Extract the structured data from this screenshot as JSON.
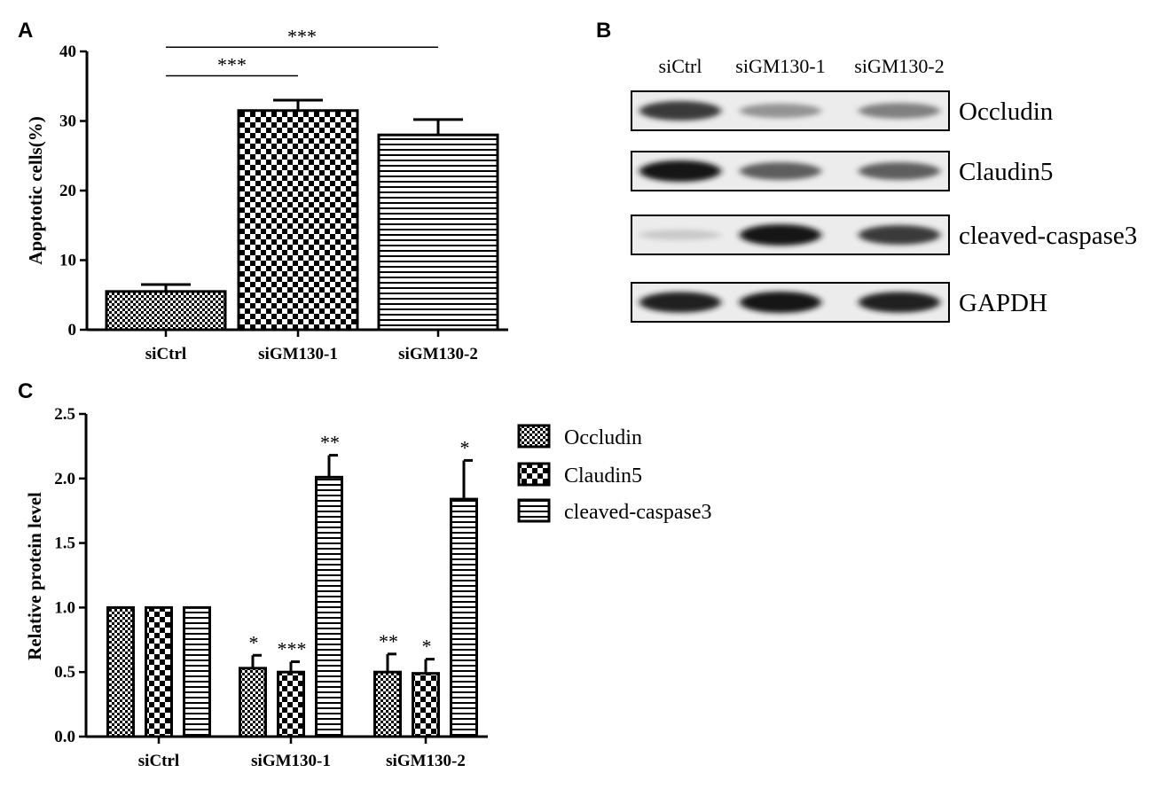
{
  "panels": {
    "a": "A",
    "b": "B",
    "c": "C"
  },
  "chart_data": [
    {
      "panel": "A",
      "type": "bar",
      "ylabel": "Apoptotic cells(%)",
      "ylim": [
        0,
        40
      ],
      "yticks": [
        0,
        10,
        20,
        30,
        40
      ],
      "categories": [
        "siCtrl",
        "siGM130-1",
        "siGM130-2"
      ],
      "values": [
        5.5,
        31.5,
        28.0
      ],
      "errors": [
        1.0,
        1.5,
        2.2
      ],
      "patterns": [
        "fine-check",
        "coarse-check",
        "hstripe"
      ],
      "significance": [
        {
          "from": 0,
          "to": 1,
          "label": "***",
          "y": 36.5
        },
        {
          "from": 0,
          "to": 2,
          "label": "***",
          "y": 40.6
        }
      ]
    },
    {
      "panel": "C",
      "type": "bar",
      "ylabel": "Relative protein level",
      "ylim": [
        0,
        2.5
      ],
      "yticks": [
        "0.0",
        "0.5",
        "1.0",
        "1.5",
        "2.0",
        "2.5"
      ],
      "categories": [
        "siCtrl",
        "siGM130-1",
        "siGM130-2"
      ],
      "legend_position": "right",
      "series": [
        {
          "name": "Occludin",
          "pattern": "fine-check",
          "values": [
            1.0,
            0.53,
            0.5
          ],
          "errors": [
            0,
            0.1,
            0.14
          ],
          "stars": [
            "",
            "*",
            "**"
          ]
        },
        {
          "name": "Claudin5",
          "pattern": "coarse-check",
          "values": [
            1.0,
            0.5,
            0.49
          ],
          "errors": [
            0,
            0.08,
            0.11
          ],
          "stars": [
            "",
            "***",
            "*"
          ]
        },
        {
          "name": "cleaved-caspase3",
          "pattern": "hstripe",
          "values": [
            1.0,
            2.01,
            1.84
          ],
          "errors": [
            0,
            0.17,
            0.3
          ],
          "stars": [
            "",
            "**",
            "*"
          ]
        }
      ]
    }
  ],
  "blot": {
    "lanes": [
      "siCtrl",
      "siGM130-1",
      "siGM130-2"
    ],
    "rows": [
      {
        "label": "Occludin",
        "intensity": [
          0.85,
          0.45,
          0.55
        ]
      },
      {
        "label": "Claudin5",
        "intensity": [
          1.0,
          0.7,
          0.7
        ]
      },
      {
        "label": "cleaved-caspase3",
        "intensity": [
          0.12,
          1.0,
          0.85
        ]
      },
      {
        "label": "GAPDH",
        "intensity": [
          0.95,
          1.0,
          0.95
        ]
      }
    ]
  }
}
